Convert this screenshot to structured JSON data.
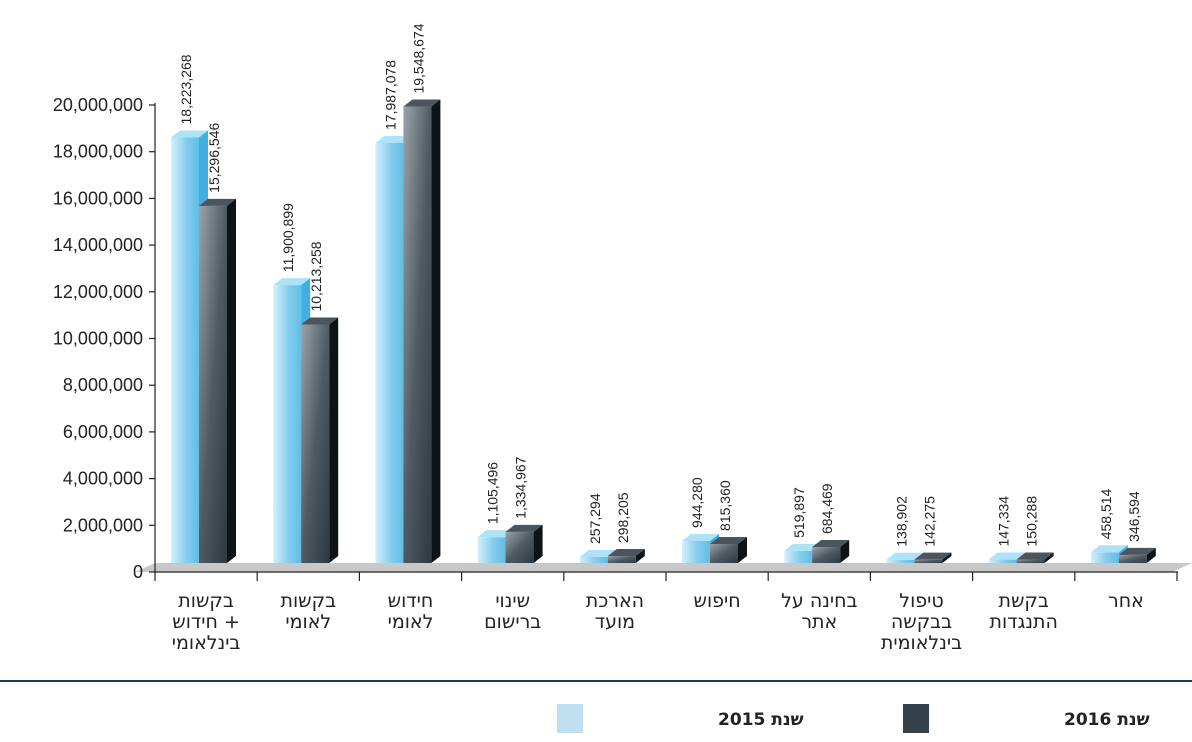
{
  "chart_data": {
    "type": "bar",
    "categories": [
      [
        "בקשות",
        "+ חידוש",
        "בינלאומי"
      ],
      [
        "בקשות",
        "לאומי"
      ],
      [
        "חידוש",
        "לאומי"
      ],
      [
        "שינוי",
        "ברישום"
      ],
      [
        "הארכת",
        "מועד"
      ],
      [
        "חיפוש"
      ],
      [
        "בחינה על",
        "אתר"
      ],
      [
        "טיפול",
        "בבקשה",
        "בינלאומית"
      ],
      [
        "בקשת",
        "התנגדות"
      ],
      [
        "אחר"
      ]
    ],
    "series": [
      {
        "name": "שנת 2015",
        "color": "#7fcbec",
        "values": [
          18223268,
          11900899,
          17987078,
          1105496,
          257294,
          944280,
          519897,
          138902,
          147334,
          458514
        ]
      },
      {
        "name": "שנת 2016",
        "color": "#34404a",
        "values": [
          15296546,
          10213258,
          19548674,
          1334967,
          298205,
          815360,
          684469,
          142275,
          150288,
          346594
        ]
      }
    ],
    "value_labels": [
      [
        "18,223,268",
        "11,900,899",
        "17,987,078",
        "1,105,496",
        "257,294",
        "944,280",
        "519,897",
        "138,902",
        "147,334",
        "458,514"
      ],
      [
        "15,296,546",
        "10,213,258",
        "19,548,674",
        "1,334,967",
        "298,205",
        "815,360",
        "684,469",
        "142,275",
        "150,288",
        "346,594"
      ]
    ],
    "y_ticks": [
      "0",
      "2,000,000",
      "4,000,000",
      "6,000,000",
      "8,000,000",
      "10,000,000",
      "12,000,000",
      "14,000,000",
      "16,000,000",
      "18,000,000",
      "20,000,000"
    ],
    "ylim": [
      0,
      20000000
    ],
    "legend_position": "bottom",
    "grid": false
  }
}
